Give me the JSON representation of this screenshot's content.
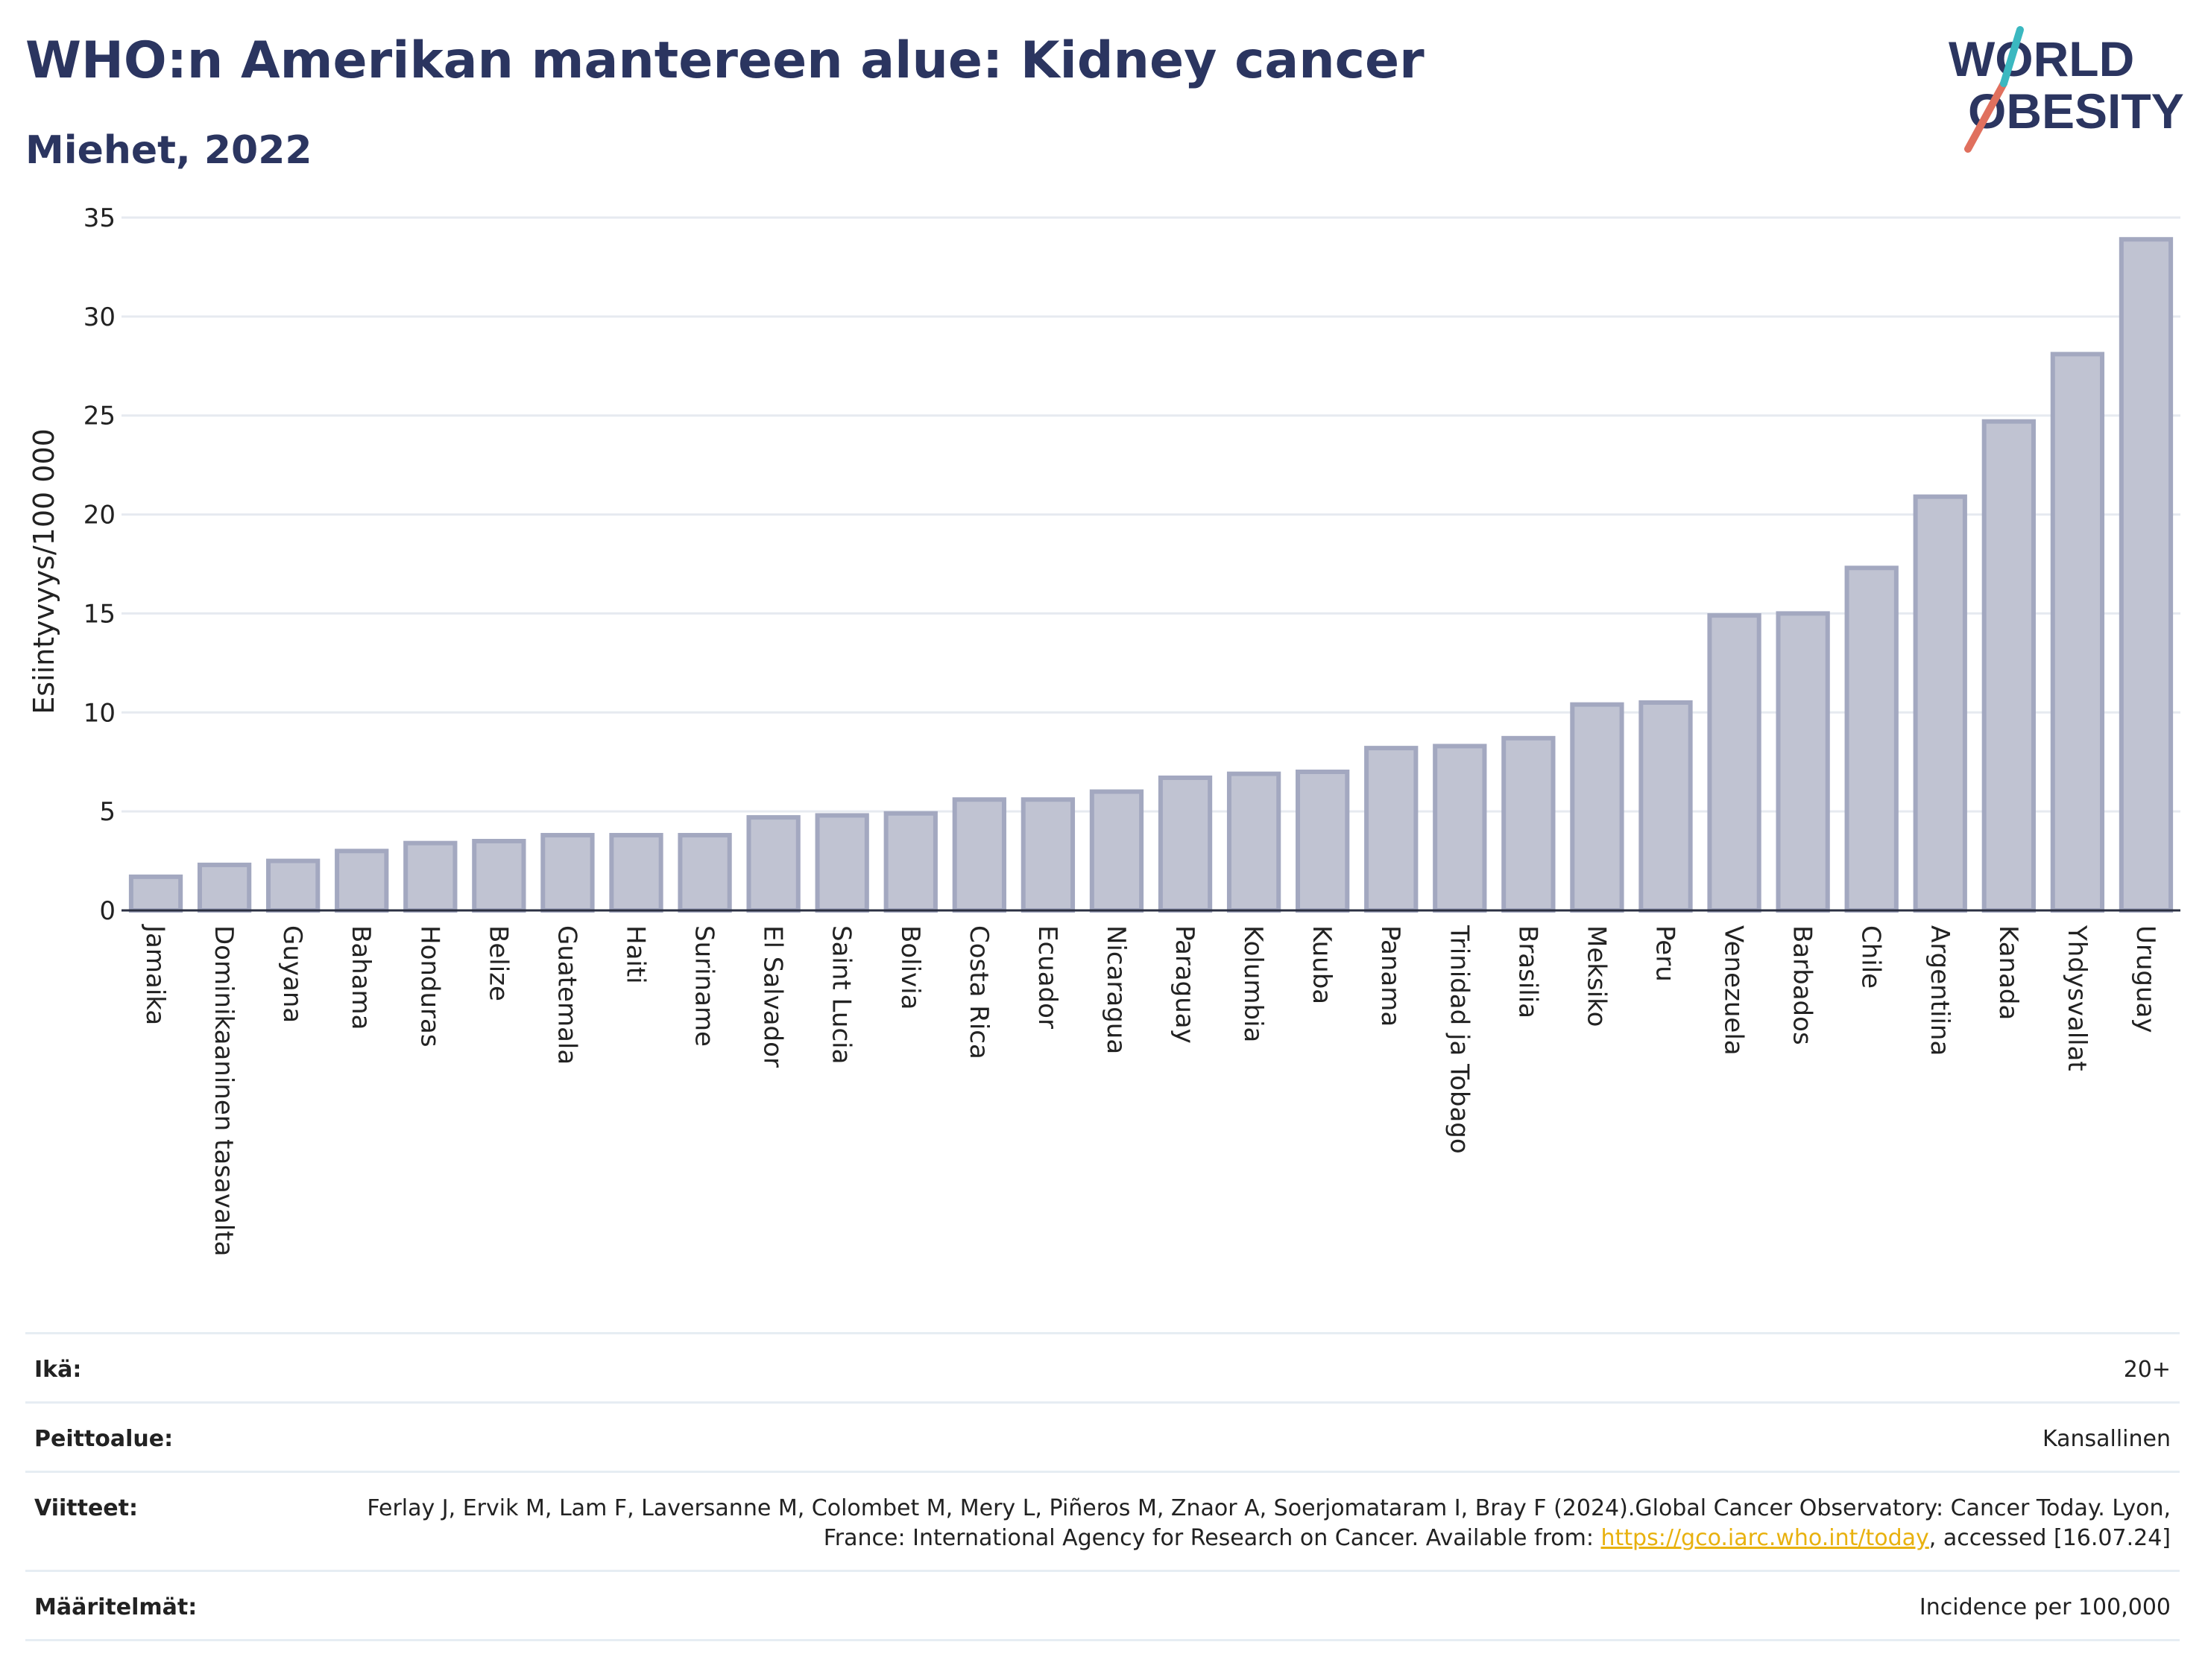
{
  "header": {
    "title": "WHO:n Amerikan mantereen alue: Kidney cancer",
    "subtitle": "Miehet, 2022"
  },
  "logo": {
    "line1": "WORLD",
    "line2": "OBESITY",
    "accent_colors": [
      "#e0705e",
      "#3bb8c0"
    ],
    "text_color": "#2b3560"
  },
  "chart_data": {
    "type": "bar",
    "ylabel": "Esiintyvyys/100 000",
    "xlabel": "",
    "ylim": [
      0,
      35
    ],
    "yticks": [
      0,
      5,
      10,
      15,
      20,
      25,
      30,
      35
    ],
    "grid": true,
    "bar_fill": "#c0c3d2",
    "bar_stroke": "#a3a8c0",
    "categories": [
      "Jamaika",
      "Dominikaaninen tasavalta",
      "Guyana",
      "Bahama",
      "Honduras",
      "Belize",
      "Guatemala",
      "Haiti",
      "Suriname",
      "El Salvador",
      "Saint Lucia",
      "Bolivia",
      "Costa Rica",
      "Ecuador",
      "Nicaragua",
      "Paraguay",
      "Kolumbia",
      "Kuuba",
      "Panama",
      "Trinidad ja Tobago",
      "Brasilia",
      "Meksiko",
      "Peru",
      "Venezuela",
      "Barbados",
      "Chile",
      "Argentiina",
      "Kanada",
      "Yhdysvallat",
      "Uruguay"
    ],
    "values": [
      1.7,
      2.3,
      2.5,
      3.0,
      3.4,
      3.5,
      3.8,
      3.8,
      3.8,
      4.7,
      4.8,
      4.9,
      5.6,
      5.6,
      6.0,
      6.7,
      6.9,
      7.0,
      8.2,
      8.3,
      8.7,
      10.4,
      10.5,
      14.9,
      15.0,
      17.3,
      20.9,
      24.7,
      28.1,
      33.9
    ]
  },
  "meta": {
    "age_label": "Ikä:",
    "age_value": "20+",
    "coverage_label": "Peittoalue:",
    "coverage_value": "Kansallinen",
    "refs_label": "Viitteet:",
    "refs_text_1": "Ferlay J, Ervik M, Lam F, Laversanne M, Colombet M, Mery L, Piñeros M, Znaor A, Soerjomataram I, Bray F (2024).Global Cancer Observatory: Cancer Today. Lyon, France: International Agency for Research on Cancer. Available from: ",
    "refs_link": "https://gco.iarc.who.int/today",
    "refs_text_2": ", accessed [16.07.24]",
    "definitions_label": "Määritelmät:",
    "definitions_value": "Incidence per 100,000"
  }
}
